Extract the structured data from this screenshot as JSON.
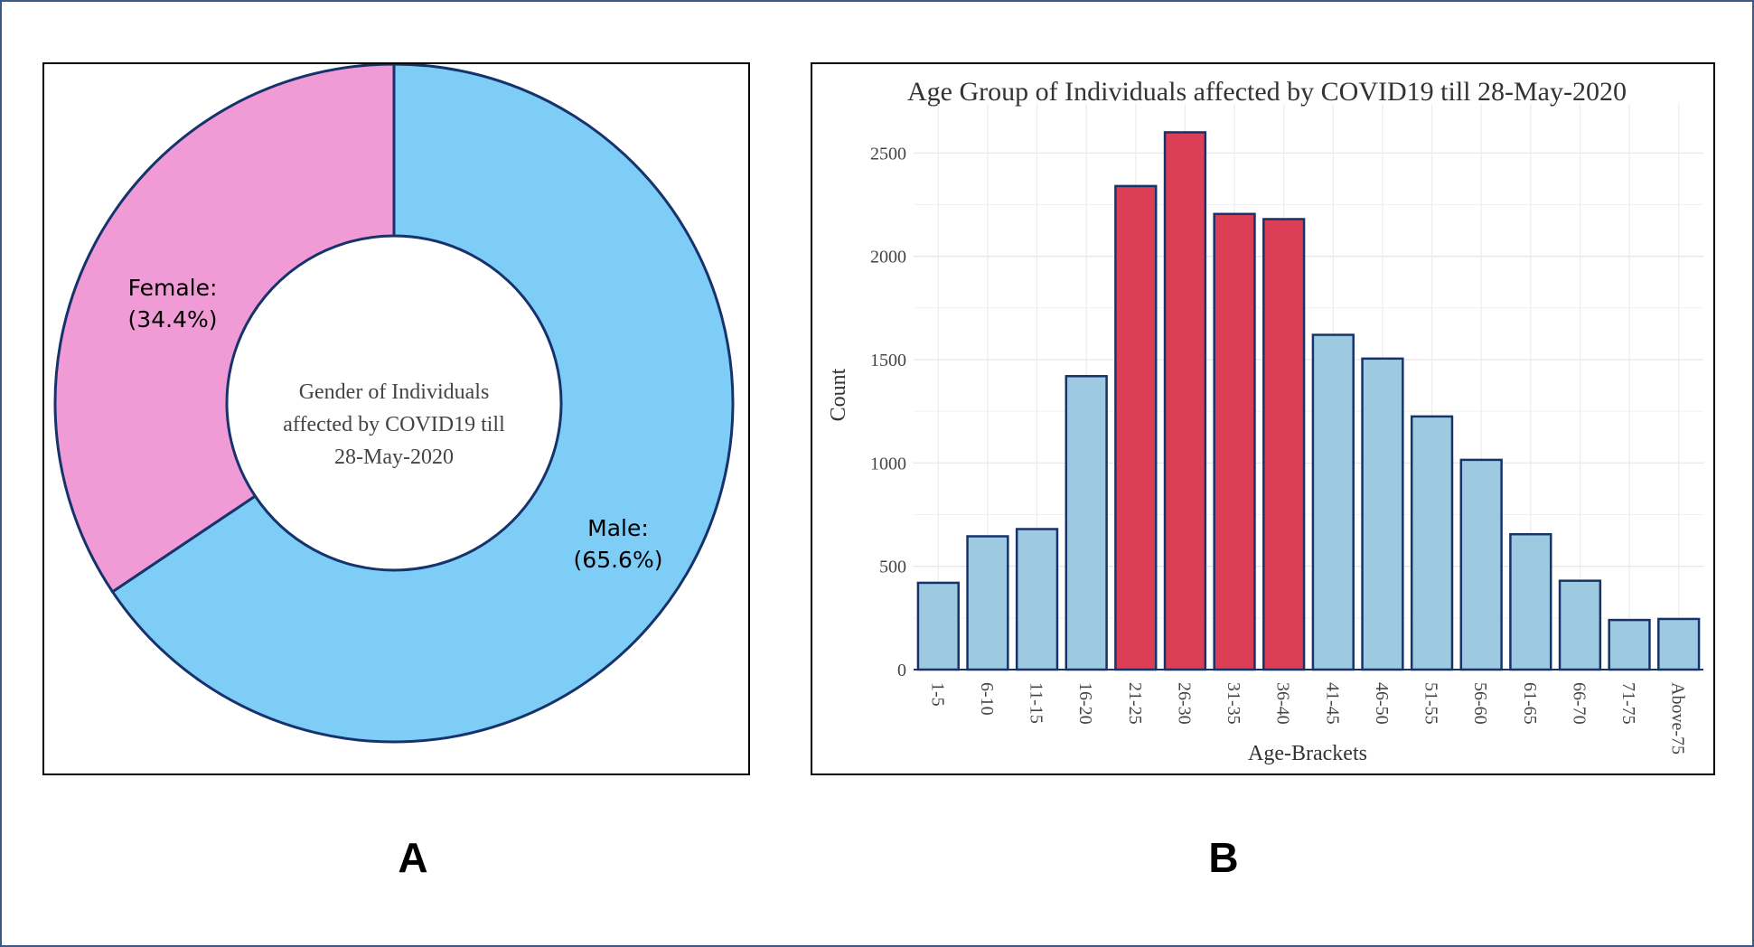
{
  "panels": {
    "a_label": "A",
    "b_label": "B"
  },
  "chart_data": [
    {
      "type": "pie",
      "style": "donut",
      "center_text_lines": [
        "Gender of Individuals",
        "affected by COVID19 till",
        "28-May-2020"
      ],
      "slices": [
        {
          "name": "Male:",
          "value_label": "(65.6%)",
          "value": 65.6,
          "color": "#7ecdf6"
        },
        {
          "name": "Female:",
          "value_label": "(34.4%)",
          "value": 34.4,
          "color": "#f19bd6"
        }
      ],
      "edge_color": "#17336b"
    },
    {
      "type": "bar",
      "title": "Age Group of Individuals affected by COVID19 till 28-May-2020",
      "xlabel": "Age-Brackets",
      "ylabel": "Count",
      "categories": [
        "1-5",
        "6-10",
        "11-15",
        "16-20",
        "21-25",
        "26-30",
        "31-35",
        "36-40",
        "41-45",
        "46-50",
        "51-55",
        "56-60",
        "61-65",
        "66-70",
        "71-75",
        "Above-75"
      ],
      "values": [
        420,
        645,
        680,
        1420,
        2340,
        2600,
        2205,
        2180,
        1620,
        1505,
        1225,
        1015,
        655,
        430,
        240,
        245
      ],
      "highlighted": [
        "21-25",
        "26-30",
        "31-35",
        "36-40"
      ],
      "colors": {
        "normal": "#9ecae1",
        "highlight": "#dc3e55",
        "edge": "#17336b"
      },
      "ylim": [
        0,
        2650
      ],
      "yticks": [
        0,
        500,
        1000,
        1500,
        2000,
        2500
      ],
      "grid": true
    }
  ]
}
